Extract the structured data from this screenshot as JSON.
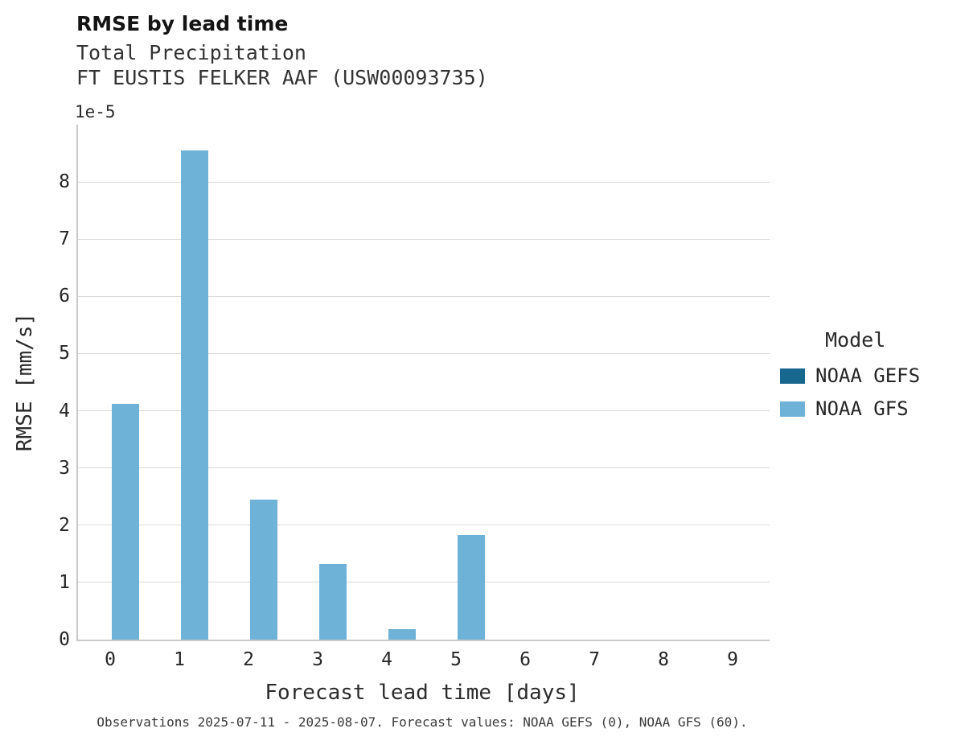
{
  "header": {
    "title": "RMSE by lead time",
    "subtitle_variable": "Total Precipitation",
    "subtitle_station": "FT EUSTIS FELKER AAF (USW00093735)"
  },
  "caption": "Observations 2025-07-11 - 2025-08-07. Forecast values: NOAA GEFS (0), NOAA GFS (60).",
  "chart_data": {
    "type": "bar",
    "title": "RMSE by lead time",
    "subtitle": "Total Precipitation — FT EUSTIS FELKER AAF (USW00093735)",
    "xlabel": "Forecast lead time [days]",
    "ylabel": "RMSE [mm/s]",
    "y_offset_text": "1e-5",
    "y_units_note": "values are in units of 1e-5 mm/s",
    "x": [
      0,
      1,
      2,
      3,
      4,
      5,
      6,
      7,
      8,
      9
    ],
    "xticks": [
      0,
      1,
      2,
      3,
      4,
      5,
      6,
      7,
      8,
      9
    ],
    "yticks": [
      0,
      1,
      2,
      3,
      4,
      5,
      6,
      7,
      8
    ],
    "ylim": [
      0,
      9
    ],
    "grid": true,
    "legend_title": "Model",
    "legend_position": "right",
    "series": [
      {
        "name": "NOAA GEFS",
        "color": "#17678f",
        "values": [
          0,
          0,
          0,
          0,
          0,
          0,
          0,
          0,
          0,
          0
        ]
      },
      {
        "name": "NOAA GFS",
        "color": "#6fb2d8",
        "values": [
          4.12,
          8.55,
          2.45,
          1.32,
          0.18,
          1.83,
          0,
          0,
          0,
          0
        ]
      }
    ]
  }
}
